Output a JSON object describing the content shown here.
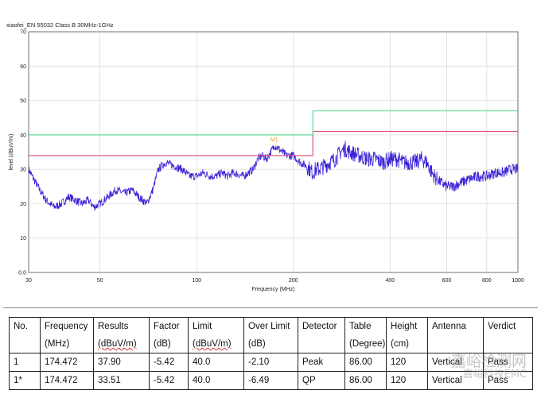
{
  "chart_data": {
    "type": "line",
    "title": "xiaofei_EN 55032 Class B 30MHz-1GHz",
    "xlabel": "Frequency (MHz)",
    "ylabel": "level (dBuV/m)",
    "xscale": "log",
    "xlim": [
      30,
      1000
    ],
    "ylim": [
      0,
      70
    ],
    "xticks": [
      30,
      50,
      100,
      200,
      400,
      600,
      800,
      1000
    ],
    "xtick_labels": [
      "30",
      "50",
      "100",
      "200",
      "400",
      "600",
      "800",
      "1000"
    ],
    "yticks": [
      0,
      10,
      20,
      30,
      40,
      50,
      60,
      70
    ],
    "ytick_labels": [
      "0.0",
      "10",
      "20",
      "30",
      "40",
      "50",
      "60",
      "70"
    ],
    "grid": true,
    "series": [
      {
        "color": "#3a22d6",
        "x": [
          30,
          32,
          34,
          36,
          38,
          40,
          42,
          44,
          46,
          48,
          50,
          53,
          56,
          60,
          63,
          66,
          70,
          73,
          76,
          80,
          85,
          90,
          95,
          100,
          105,
          110,
          115,
          120,
          125,
          130,
          140,
          150,
          155,
          160,
          165,
          170,
          175,
          180,
          185,
          190,
          200,
          210,
          220,
          230,
          235,
          240,
          250,
          260,
          270,
          280,
          290,
          300,
          320,
          340,
          360,
          380,
          400,
          420,
          440,
          460,
          480,
          500,
          520,
          540,
          560,
          580,
          600,
          630,
          660,
          700,
          750,
          800,
          850,
          900,
          950,
          1000
        ],
        "values": [
          30,
          25,
          21,
          19,
          20,
          22,
          21,
          20,
          21,
          19,
          20,
          22,
          24,
          23,
          24,
          22,
          20,
          24,
          30,
          32,
          31,
          30,
          28,
          28,
          29,
          28,
          28,
          29,
          28,
          29,
          28,
          30,
          33,
          34,
          33,
          35,
          37,
          36,
          35,
          34,
          34,
          32,
          31,
          29,
          30,
          30,
          31,
          32,
          33,
          35,
          36,
          35,
          34,
          33,
          33,
          32,
          33,
          33,
          32,
          32,
          32,
          33,
          32,
          29,
          27,
          26,
          25,
          25,
          26,
          27,
          28,
          28,
          29,
          29,
          30,
          30
        ]
      },
      {
        "color": "#e0567a",
        "x": [
          30,
          230,
          230,
          1000
        ],
        "values": [
          34,
          34,
          41,
          41
        ]
      },
      {
        "color": "#5fdc9c",
        "x": [
          30,
          230,
          230,
          1000
        ],
        "values": [
          40,
          40,
          47,
          47
        ]
      }
    ],
    "annotations": [
      {
        "text": "M1",
        "x": 174.472,
        "y": 37.9,
        "color": "#e8a020"
      }
    ]
  },
  "table": {
    "headers": [
      "No.",
      "Frequency",
      "Results",
      "Factor",
      "Limit",
      "Over Limit",
      "Detector",
      "Table",
      "Height",
      "Antenna",
      "Verdict"
    ],
    "units": [
      "",
      "(MHz)",
      "(dBuV/m)",
      "(dB)",
      "(dBuV/m)",
      "(dB)",
      "",
      "(Degree)",
      "(cm)",
      "",
      ""
    ],
    "rows": [
      [
        "1",
        "174.472",
        "37.90",
        "-5.42",
        "40.0",
        "-2.10",
        "Peak",
        "86.00",
        "120",
        "Vertical",
        "Pass"
      ],
      [
        "1*",
        "174.472",
        "33.51",
        "-5.42",
        "40.0",
        "-6.49",
        "QP",
        "86.00",
        "120",
        "Vertical",
        "Pass"
      ]
    ]
  },
  "watermark": {
    "line1": "嘉峪检测网",
    "line2": "嘉峪科技EMC"
  }
}
